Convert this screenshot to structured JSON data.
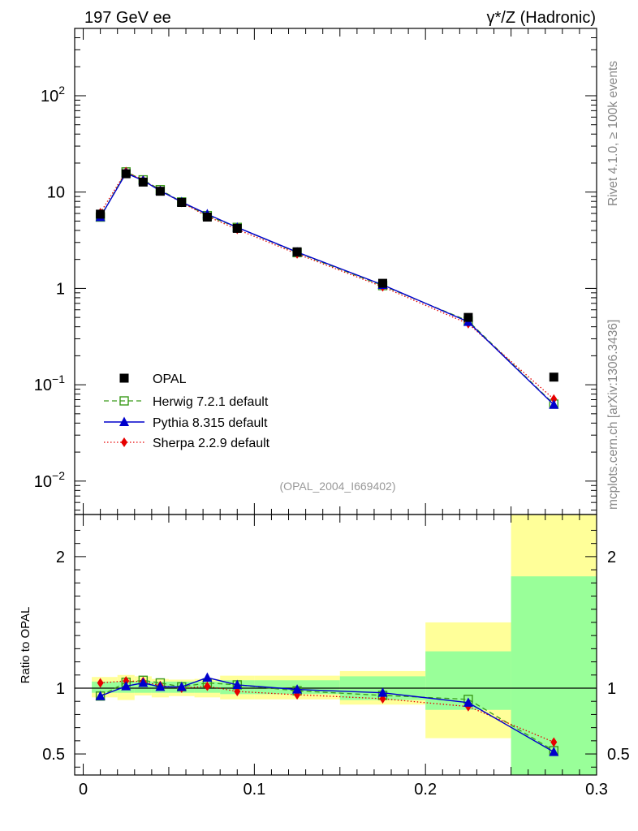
{
  "header": {
    "left_title": "197 GeV ee",
    "right_title": "γ*/Z (Hadronic)"
  },
  "side_labels": {
    "rivet": "Rivet 4.1.0, ≥ 100k events",
    "mcplots": "mcplots.cern.ch [arXiv:1306.3436]"
  },
  "analysis_tag": "(OPAL_2004_I669402)",
  "ratio_ylabel": "Ratio to OPAL",
  "colors": {
    "opal": "#000000",
    "herwig": "#3a9a1a",
    "pythia": "#0000cc",
    "sherpa": "#e60000",
    "band_inner": "#99ff99",
    "band_outer": "#ffff99"
  },
  "main_axis": {
    "yscale": "log",
    "ylim": [
      0.0045,
      500
    ],
    "xlim": [
      -0.005,
      0.3
    ],
    "ytick_labels": [
      {
        "v": 0.01,
        "base": "10",
        "exp": "−2"
      },
      {
        "v": 0.1,
        "base": "10",
        "exp": "−1"
      },
      {
        "v": 1,
        "base": "1",
        "exp": ""
      },
      {
        "v": 10,
        "base": "10",
        "exp": ""
      },
      {
        "v": 100,
        "base": "10",
        "exp": "2"
      }
    ]
  },
  "ratio_axis": {
    "ylim": [
      0.34,
      2.32
    ],
    "ytick_labels": [
      "0.5",
      "1",
      "2"
    ],
    "yticks": [
      0.5,
      1,
      2
    ]
  },
  "x_tick_labels": [
    "0",
    "0.1",
    "0.2",
    "0.3"
  ],
  "x_ticks": [
    0,
    0.1,
    0.2,
    0.3
  ],
  "chart_data": {
    "type": "scatter",
    "x": [
      0.01,
      0.025,
      0.035,
      0.045,
      0.0575,
      0.0725,
      0.09,
      0.125,
      0.175,
      0.225,
      0.275
    ],
    "bin_edges": [
      0.005,
      0.02,
      0.03,
      0.04,
      0.05,
      0.065,
      0.08,
      0.1,
      0.15,
      0.2,
      0.25,
      0.3
    ],
    "series": [
      {
        "name": "OPAL",
        "label": "OPAL",
        "style": "square",
        "values": [
          5.9,
          15.5,
          12.7,
          10.2,
          7.8,
          5.5,
          4.2,
          2.4,
          1.13,
          0.5,
          0.12
        ]
      },
      {
        "name": "Herwig",
        "label": "Herwig 7.2.1 default",
        "style": "open-square-dashed",
        "values": [
          5.5,
          16.2,
          13.4,
          10.6,
          7.9,
          5.7,
          4.3,
          2.35,
          1.07,
          0.46,
          0.063
        ]
      },
      {
        "name": "Pythia",
        "label": "Pythia 8.315 default",
        "style": "triangle-solid",
        "values": [
          5.5,
          15.7,
          13.2,
          10.3,
          7.9,
          5.9,
          4.3,
          2.38,
          1.09,
          0.45,
          0.062
        ]
      },
      {
        "name": "Sherpa",
        "label": "Sherpa 2.2.9 default",
        "style": "diamond-dotted",
        "values": [
          6.1,
          16.3,
          13.3,
          10.4,
          7.8,
          5.6,
          4.1,
          2.28,
          1.04,
          0.43,
          0.071
        ]
      }
    ],
    "ratio_series": [
      {
        "name": "Herwig",
        "values": [
          0.94,
          1.045,
          1.06,
          1.04,
          1.01,
          1.04,
          1.025,
          0.98,
          0.945,
          0.915,
          0.525
        ]
      },
      {
        "name": "Pythia",
        "values": [
          0.94,
          1.015,
          1.04,
          1.01,
          1.01,
          1.08,
          1.025,
          0.99,
          0.965,
          0.89,
          0.515
        ]
      },
      {
        "name": "Sherpa",
        "values": [
          1.04,
          1.055,
          1.05,
          1.02,
          1.0,
          1.015,
          0.975,
          0.95,
          0.92,
          0.86,
          0.59
        ]
      }
    ],
    "band_inner": [
      [
        0.965,
        1.05
      ],
      [
        0.965,
        1.05
      ],
      [
        0.965,
        1.05
      ],
      [
        0.965,
        1.05
      ],
      [
        0.965,
        1.05
      ],
      [
        0.965,
        1.05
      ],
      [
        0.955,
        1.06
      ],
      [
        0.955,
        1.06
      ],
      [
        0.91,
        1.09
      ],
      [
        0.835,
        1.28
      ],
      [
        0.34,
        1.85
      ]
    ],
    "band_outer": [
      [
        0.93,
        1.085
      ],
      [
        0.91,
        1.1
      ],
      [
        0.945,
        1.09
      ],
      [
        0.93,
        1.07
      ],
      [
        0.94,
        1.065
      ],
      [
        0.93,
        1.07
      ],
      [
        0.915,
        1.095
      ],
      [
        0.915,
        1.095
      ],
      [
        0.875,
        1.13
      ],
      [
        0.62,
        1.5
      ],
      [
        0.34,
        2.32
      ]
    ],
    "xlabel": "",
    "ylabel": "",
    "xlim": [
      -0.005,
      0.3
    ]
  }
}
